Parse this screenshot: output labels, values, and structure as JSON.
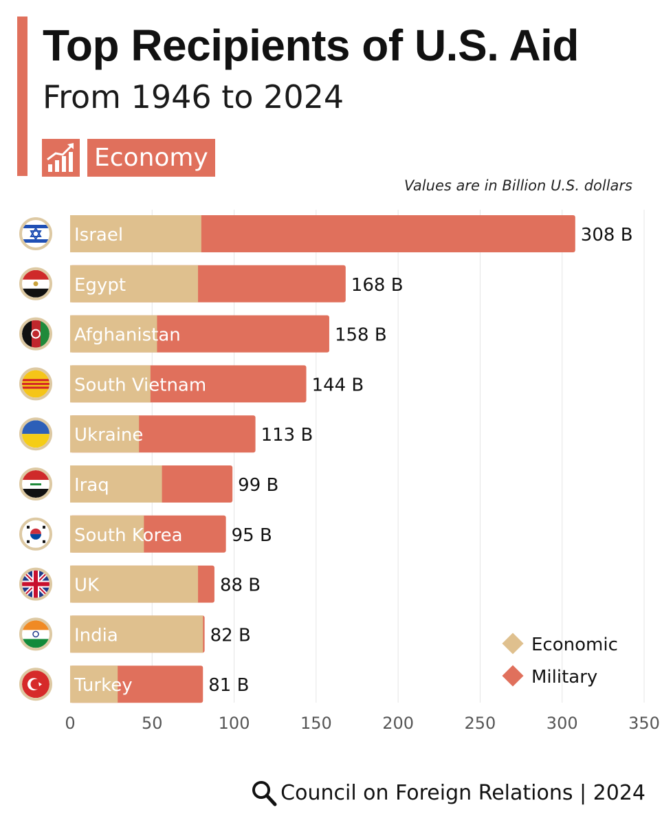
{
  "header": {
    "title": "Top Recipients of U.S. Aid",
    "subtitle": "From 1946 to 2024",
    "tag": "Economy",
    "units_note": "Values are in Billion U.S. dollars"
  },
  "footer": {
    "source": "Council on Foreign Relations | 2024"
  },
  "colors": {
    "accent": "#e0705c",
    "economic": "#dfc08e",
    "military": "#e0705c"
  },
  "chart_data": {
    "type": "bar",
    "orientation": "horizontal",
    "stacked": true,
    "title": "Top Recipients of U.S. Aid",
    "subtitle": "From 1946 to 2024",
    "xlabel": "",
    "ylabel": "",
    "xlim": [
      0,
      350
    ],
    "xticks": [
      "0",
      "50",
      "100",
      "150",
      "200",
      "250",
      "300",
      "350"
    ],
    "grid": true,
    "legend_position": "bottom-right",
    "value_suffix": " B",
    "categories": [
      "Israel",
      "Egypt",
      "Afghanistan",
      "South Vietnam",
      "Ukraine",
      "Iraq",
      "South Korea",
      "UK",
      "India",
      "Turkey"
    ],
    "flags": [
      "Israel flag",
      "Egypt flag",
      "Afghanistan flag",
      "South Vietnam flag",
      "Ukraine flag",
      "Iraq flag",
      "South Korea flag",
      "UK flag",
      "India flag",
      "Turkey flag"
    ],
    "totals": [
      308,
      168,
      158,
      144,
      113,
      99,
      95,
      88,
      82,
      81
    ],
    "series": [
      {
        "name": "Economic",
        "values": [
          80,
          78,
          53,
          49,
          42,
          56,
          45,
          78,
          81,
          29
        ]
      },
      {
        "name": "Military",
        "values": [
          228,
          90,
          105,
          95,
          71,
          43,
          50,
          10,
          1,
          52
        ]
      }
    ]
  }
}
